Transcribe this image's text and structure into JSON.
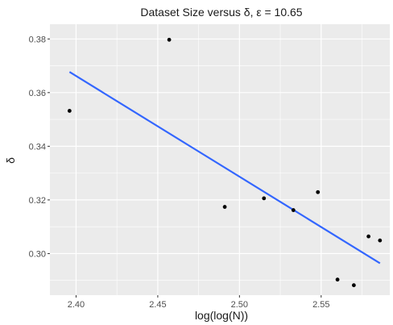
{
  "chart_data": {
    "type": "scatter",
    "title": "Dataset Size versus δ, ε = 10.65",
    "xlabel": "log(log(N))",
    "ylabel": "δ",
    "xlim": [
      2.384,
      2.592
    ],
    "ylim": [
      0.2845,
      0.3855
    ],
    "x_ticks": [
      2.4,
      2.45,
      2.5,
      2.55
    ],
    "x_tick_labels": [
      "2.40",
      "2.45",
      "2.50",
      "2.55"
    ],
    "y_ticks": [
      0.3,
      0.32,
      0.34,
      0.36,
      0.38
    ],
    "y_tick_labels": [
      "0.30",
      "0.32",
      "0.34",
      "0.36",
      "0.38"
    ],
    "grid": true,
    "colors": {
      "panel": "#ebebeb",
      "grid": "#ffffff",
      "points": "#000000",
      "line": "#3366ff"
    },
    "points": [
      {
        "x": 2.396,
        "y": 0.3532
      },
      {
        "x": 2.457,
        "y": 0.3797
      },
      {
        "x": 2.491,
        "y": 0.3174
      },
      {
        "x": 2.515,
        "y": 0.3206
      },
      {
        "x": 2.533,
        "y": 0.3162
      },
      {
        "x": 2.548,
        "y": 0.3229
      },
      {
        "x": 2.56,
        "y": 0.2903
      },
      {
        "x": 2.57,
        "y": 0.2882
      },
      {
        "x": 2.579,
        "y": 0.3064
      },
      {
        "x": 2.586,
        "y": 0.3049
      }
    ],
    "fit_line": {
      "x": [
        2.396,
        2.586
      ],
      "y": [
        0.3677,
        0.2964
      ]
    }
  }
}
